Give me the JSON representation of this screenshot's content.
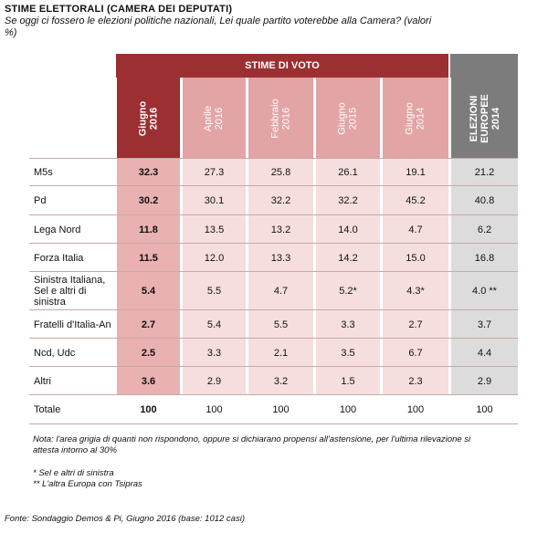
{
  "title": "STIME ELETTORALI (CAMERA DEI DEPUTATI)",
  "subtitle": "Se oggi ci fossero le elezioni politiche nazionali, Lei quale partito voterebbe alla Camera?  (valori %)",
  "group_header": "STIME DI VOTO",
  "columns": [
    "Giugno\n2016",
    "Aprile\n2016",
    "Febbraio\n2016",
    "Giugno\n2015",
    "Giugno\n2014",
    "ELEZIONI\nEUROPEE\n2014"
  ],
  "rows": [
    {
      "label": "M5s",
      "values": [
        "32.3",
        "27.3",
        "25.8",
        "26.1",
        "19.1",
        "21.2"
      ]
    },
    {
      "label": "Pd",
      "values": [
        "30.2",
        "30.1",
        "32.2",
        "32.2",
        "45.2",
        "40.8"
      ]
    },
    {
      "label": "Lega Nord",
      "values": [
        "11.8",
        "13.5",
        "13.2",
        "14.0",
        "4.7",
        "6.2"
      ]
    },
    {
      "label": "Forza Italia",
      "values": [
        "11.5",
        "12.0",
        "13.3",
        "14.2",
        "15.0",
        "16.8"
      ]
    },
    {
      "label": "Sinistra Italiana, Sel e altri di sinistra",
      "values": [
        "5.4",
        "5.5",
        "4.7",
        "5.2*",
        "4.3*",
        "4.0 **"
      ]
    },
    {
      "label": "Fratelli d'Italia-An",
      "values": [
        "2.7",
        "5.4",
        "5.5",
        "3.3",
        "2.7",
        "3.7"
      ]
    },
    {
      "label": "Ncd, Udc",
      "values": [
        "2.5",
        "3.3",
        "2.1",
        "3.5",
        "6.7",
        "4.4"
      ]
    },
    {
      "label": "Altri",
      "values": [
        "3.6",
        "2.9",
        "3.2",
        "1.5",
        "2.3",
        "2.9"
      ]
    },
    {
      "label": "Totale",
      "values": [
        "100",
        "100",
        "100",
        "100",
        "100",
        "100"
      ]
    }
  ],
  "notes": {
    "note1": "Nota: l'area grigia di quanti non rispondono, oppure si dichiarano propensi all'astensione, per l'ultima rilevazione si attesta intorno al 30%",
    "note2": "* Sel e altri di sinistra",
    "note3": "** L'altra Europa con Tsipras"
  },
  "source": "Fonte: Sondaggio Demos & Pi, Giugno 2016 (base: 1012 casi)",
  "colors": {
    "band_dark": "#9c2f32",
    "first_col_body": "#e9b1b1",
    "other_col_body": "#f6dede",
    "header_pink": "#e3a4a6",
    "gray_header": "#7c7c7c",
    "gray_body": "#dcdcdc"
  },
  "chart_data": {
    "type": "table",
    "title": "STIME ELETTORALI (CAMERA DEI DEPUTATI)",
    "categories": [
      "M5s",
      "Pd",
      "Lega Nord",
      "Forza Italia",
      "Sinistra Italiana, Sel e altri di sinistra",
      "Fratelli d'Italia-An",
      "Ncd, Udc",
      "Altri",
      "Totale"
    ],
    "series": [
      {
        "name": "Giugno 2016",
        "values": [
          32.3,
          30.2,
          11.8,
          11.5,
          5.4,
          2.7,
          2.5,
          3.6,
          100
        ]
      },
      {
        "name": "Aprile 2016",
        "values": [
          27.3,
          30.1,
          13.5,
          12.0,
          5.5,
          5.4,
          3.3,
          2.9,
          100
        ]
      },
      {
        "name": "Febbraio 2016",
        "values": [
          25.8,
          32.2,
          13.2,
          13.3,
          4.7,
          5.5,
          2.1,
          3.2,
          100
        ]
      },
      {
        "name": "Giugno 2015",
        "values": [
          26.1,
          32.2,
          14.0,
          14.2,
          5.2,
          3.3,
          3.5,
          1.5,
          100
        ]
      },
      {
        "name": "Giugno 2014",
        "values": [
          19.1,
          45.2,
          4.7,
          15.0,
          4.3,
          2.7,
          6.7,
          2.3,
          100
        ]
      },
      {
        "name": "ELEZIONI EUROPEE 2014",
        "values": [
          21.2,
          40.8,
          6.2,
          16.8,
          4.0,
          3.7,
          4.4,
          2.9,
          100
        ]
      }
    ]
  }
}
